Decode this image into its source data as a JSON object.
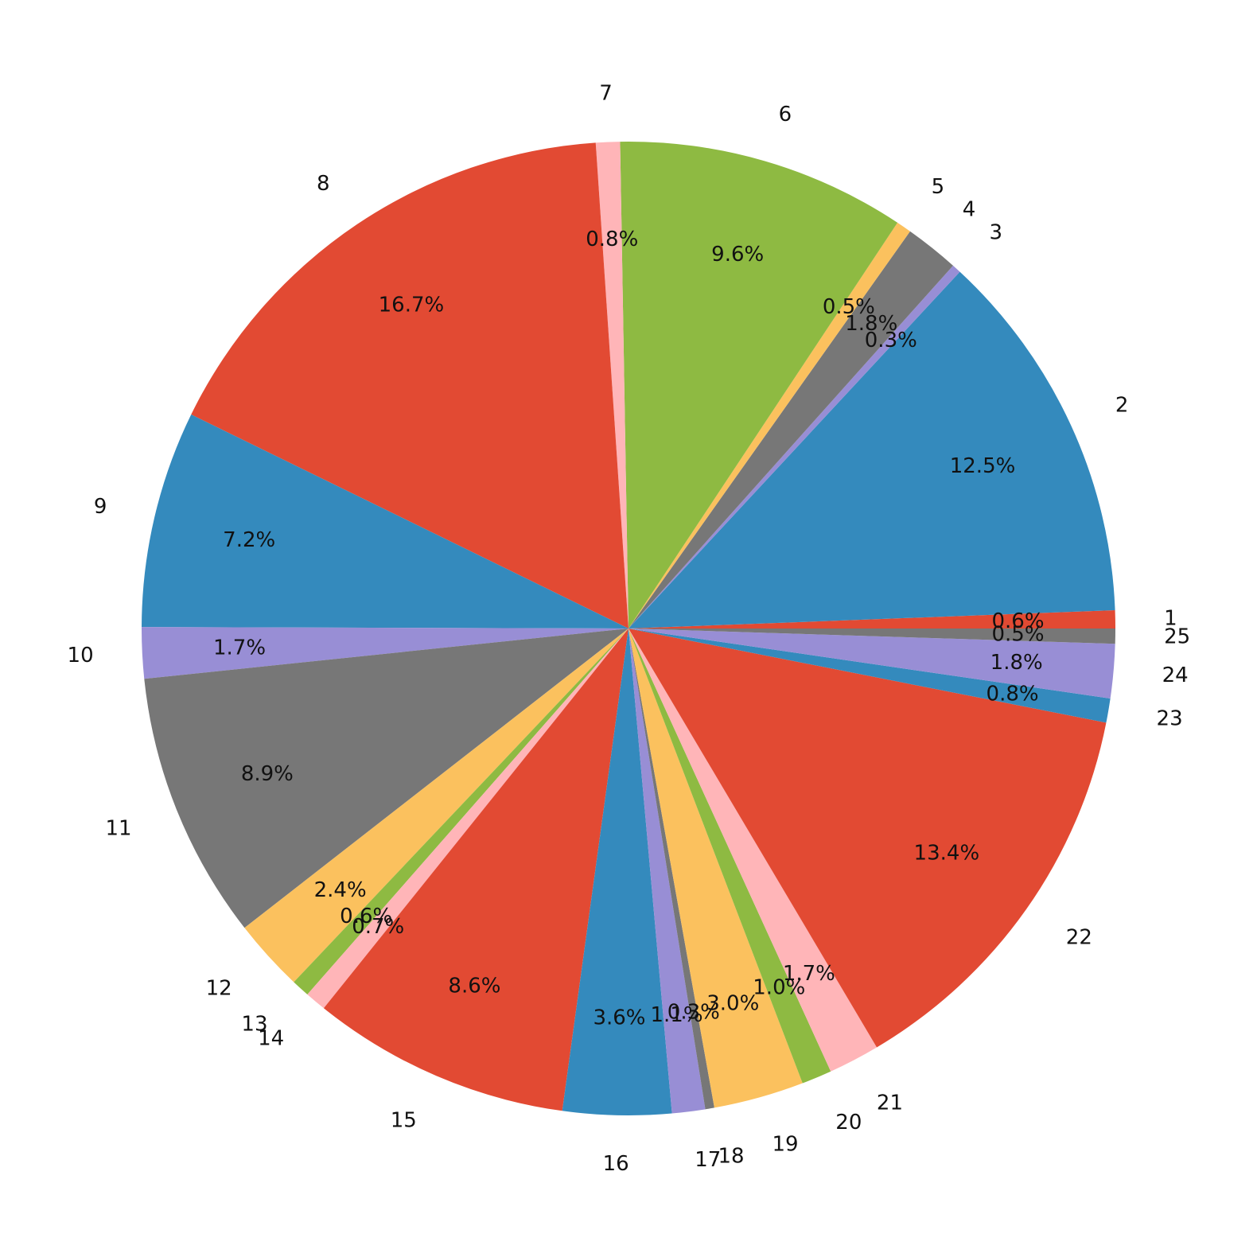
{
  "chart_data": {
    "type": "pie",
    "title": "",
    "start_angle_deg": 0,
    "direction": "counterclockwise",
    "slices": [
      {
        "label": "1",
        "value": 0.6,
        "pct_label": "0.6%",
        "color": "#E24A33"
      },
      {
        "label": "2",
        "value": 12.5,
        "pct_label": "12.5%",
        "color": "#348ABD"
      },
      {
        "label": "3",
        "value": 0.3,
        "pct_label": "0.3%",
        "color": "#988ED5"
      },
      {
        "label": "4",
        "value": 1.8,
        "pct_label": "1.8%",
        "color": "#777777"
      },
      {
        "label": "5",
        "value": 0.5,
        "pct_label": "0.5%",
        "color": "#FBC15E"
      },
      {
        "label": "6",
        "value": 9.6,
        "pct_label": "9.6%",
        "color": "#8EBA42"
      },
      {
        "label": "7",
        "value": 0.8,
        "pct_label": "0.8%",
        "color": "#FFB5B8"
      },
      {
        "label": "8",
        "value": 16.7,
        "pct_label": "16.7%",
        "color": "#E24A33"
      },
      {
        "label": "9",
        "value": 7.2,
        "pct_label": "7.2%",
        "color": "#348ABD"
      },
      {
        "label": "10",
        "value": 1.7,
        "pct_label": "1.7%",
        "color": "#988ED5"
      },
      {
        "label": "11",
        "value": 8.9,
        "pct_label": "8.9%",
        "color": "#777777"
      },
      {
        "label": "12",
        "value": 2.4,
        "pct_label": "2.4%",
        "color": "#FBC15E"
      },
      {
        "label": "13",
        "value": 0.6,
        "pct_label": "0.6%",
        "color": "#8EBA42"
      },
      {
        "label": "14",
        "value": 0.7,
        "pct_label": "0.7%",
        "color": "#FFB5B8"
      },
      {
        "label": "15",
        "value": 8.6,
        "pct_label": "8.6%",
        "color": "#E24A33"
      },
      {
        "label": "16",
        "value": 3.6,
        "pct_label": "3.6%",
        "color": "#348ABD"
      },
      {
        "label": "17",
        "value": 1.1,
        "pct_label": "1.1%",
        "color": "#988ED5"
      },
      {
        "label": "18",
        "value": 0.3,
        "pct_label": "0.3%",
        "color": "#777777"
      },
      {
        "label": "19",
        "value": 3.0,
        "pct_label": "3.0%",
        "color": "#FBC15E"
      },
      {
        "label": "20",
        "value": 1.0,
        "pct_label": "1.0%",
        "color": "#8EBA42"
      },
      {
        "label": "21",
        "value": 1.7,
        "pct_label": "1.7%",
        "color": "#FFB5B8"
      },
      {
        "label": "22",
        "value": 13.4,
        "pct_label": "13.4%",
        "color": "#E24A33"
      },
      {
        "label": "23",
        "value": 0.8,
        "pct_label": "0.8%",
        "color": "#348ABD"
      },
      {
        "label": "24",
        "value": 1.8,
        "pct_label": "1.8%",
        "color": "#988ED5"
      },
      {
        "label": "25",
        "value": 0.5,
        "pct_label": "0.5%",
        "color": "#777777"
      }
    ]
  }
}
